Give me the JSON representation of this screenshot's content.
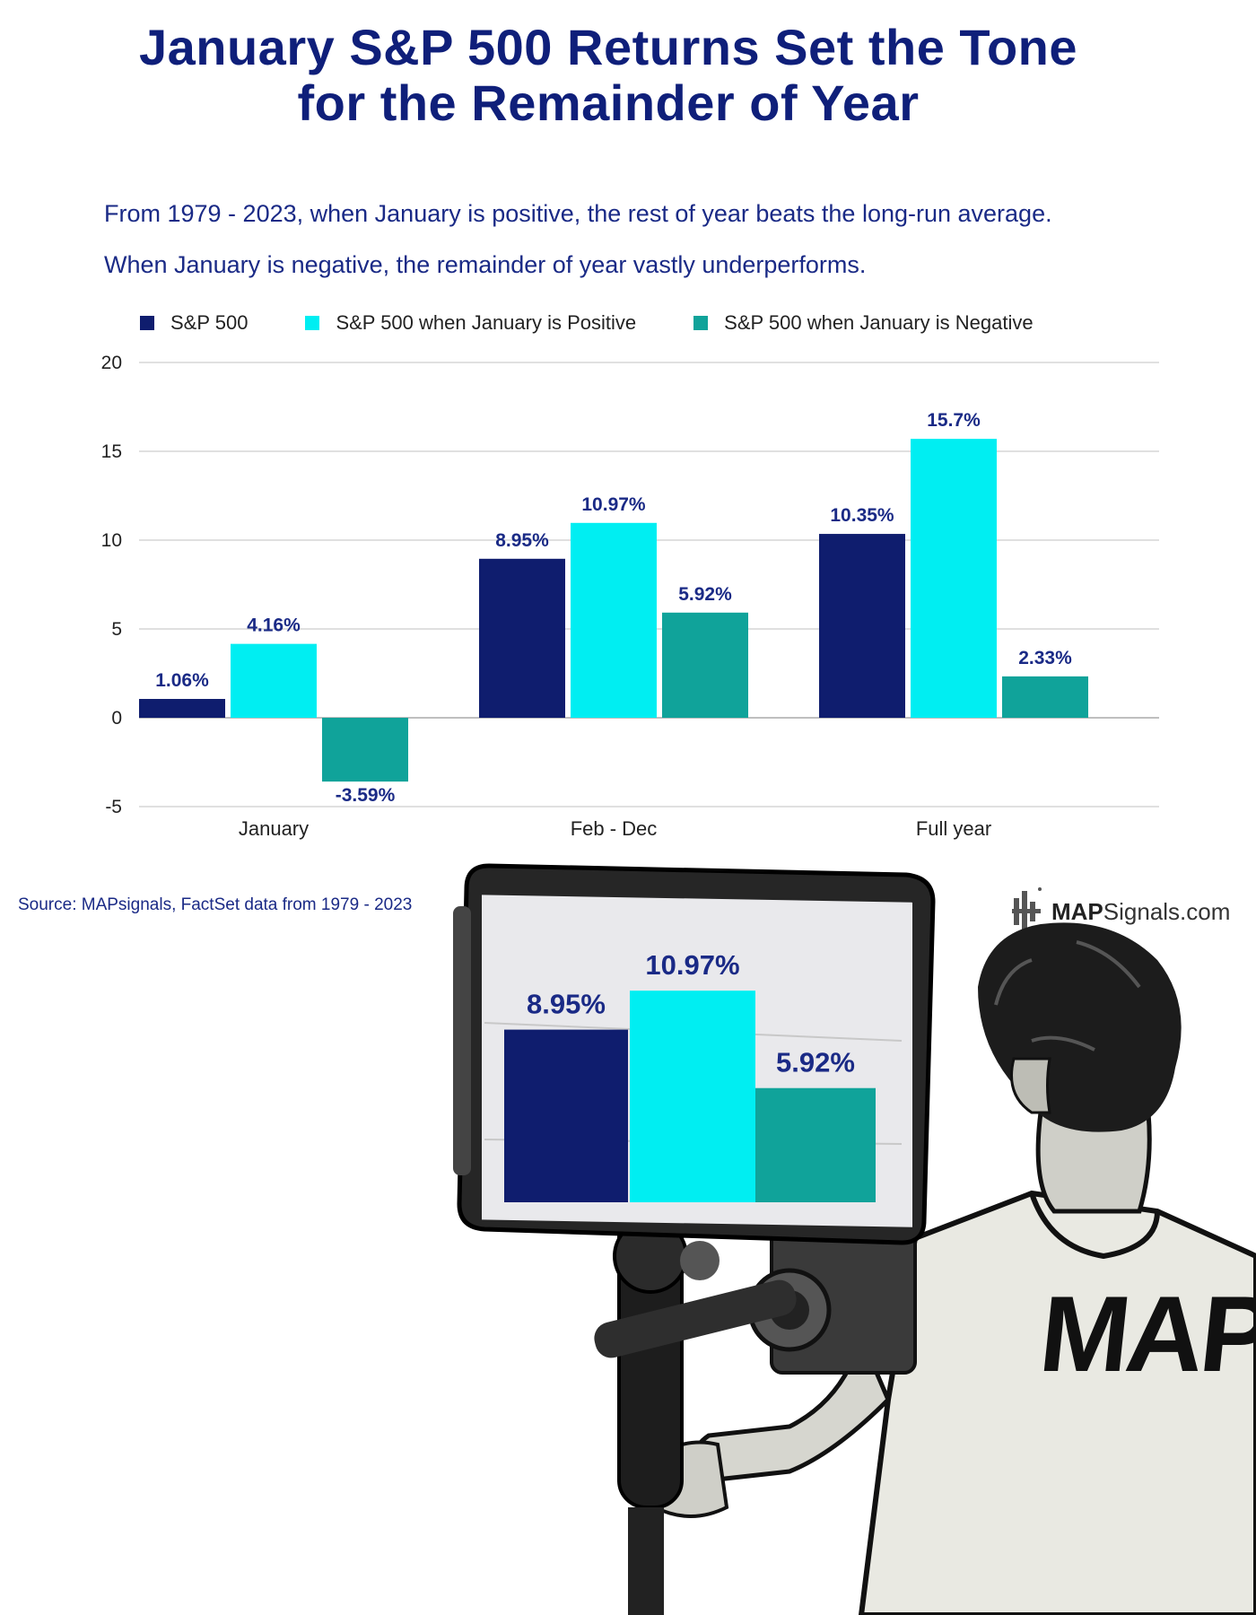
{
  "title_lines": [
    "January S&P 500 Returns Set the Tone",
    "for the Remainder of Year"
  ],
  "subtitle_lines": [
    "From 1979 - 2023, when January is positive, the rest of year beats the long-run average.",
    "When January is negative, the remainder of year vastly underperforms."
  ],
  "source": "Source: MAPsignals, FactSet data from 1979 - 2023",
  "brand": {
    "bold": "MAP",
    "rest": "Signals.com"
  },
  "tshirt_text": "MAP",
  "colors": {
    "title": "#0f1f7a",
    "sp500": "#0f1d6e",
    "positive": "#00eef2",
    "negative": "#10a39a",
    "grid": "#d6d6d6"
  },
  "chart_data": {
    "type": "bar",
    "categories": [
      "January",
      "Feb - Dec",
      "Full year"
    ],
    "series": [
      {
        "name": "S&P 500",
        "values": [
          1.06,
          8.95,
          10.35
        ],
        "labels": [
          "1.06%",
          "8.95%",
          "10.35%"
        ]
      },
      {
        "name": "S&P 500 when January is Positive",
        "values": [
          4.16,
          10.97,
          15.7
        ],
        "labels": [
          "4.16%",
          "10.97%",
          "15.7%"
        ]
      },
      {
        "name": "S&P 500 when January is Negative",
        "values": [
          -3.59,
          5.92,
          2.33
        ],
        "labels": [
          "-3.59%",
          "5.92%",
          "2.33%"
        ]
      }
    ],
    "yticks": [
      20,
      15,
      10,
      5,
      0,
      -5
    ],
    "ylim": [
      -5,
      20
    ],
    "grid": true,
    "legend": "top"
  },
  "inset": {
    "values": [
      8.95,
      10.97,
      5.92
    ],
    "labels": [
      "8.95%",
      "10.97%",
      "5.92%"
    ]
  }
}
